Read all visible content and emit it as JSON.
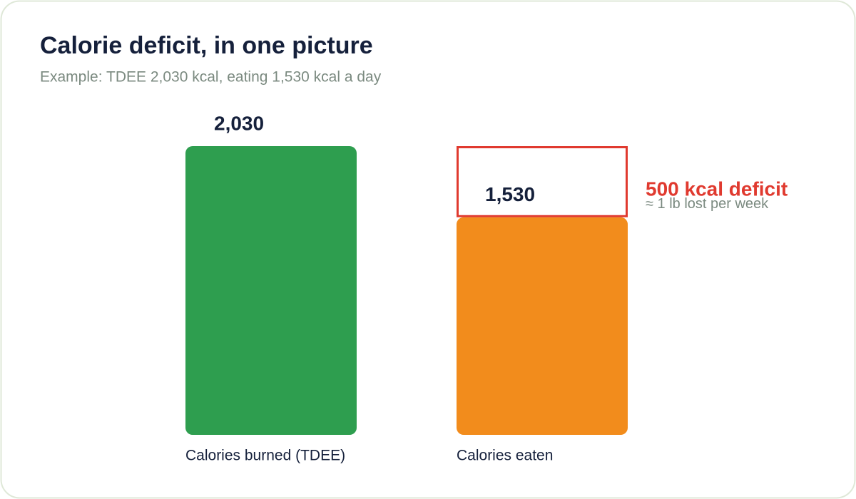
{
  "chart_data": {
    "type": "bar",
    "title": "Calorie deficit, in one picture",
    "subtitle": "Example: TDEE 2,030 kcal, eating 1,530 kcal a day",
    "categories": [
      "Calories burned (TDEE)",
      "Calories eaten"
    ],
    "values": [
      2030,
      1530
    ],
    "value_labels": [
      "2,030",
      "1,530"
    ],
    "colors": [
      "#2e9e4f",
      "#f28c1c"
    ],
    "annotation": {
      "text": "500 kcal deficit",
      "subtext": "≈ 1 lb lost per week",
      "color": "#e03a2f"
    }
  }
}
